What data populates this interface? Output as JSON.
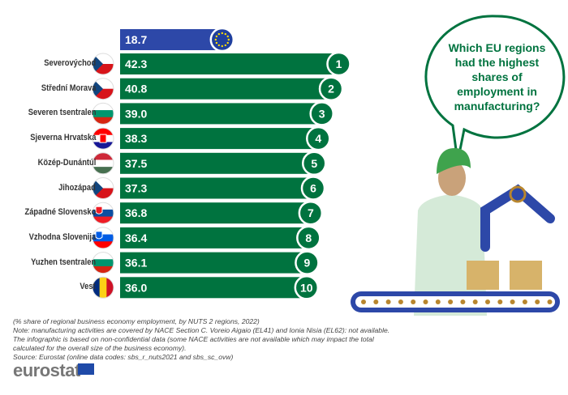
{
  "chart_data": {
    "type": "bar",
    "orientation": "horizontal",
    "eu_value": 18.7,
    "categories": [
      "Severovýchod",
      "Střední Morava",
      "Severen tsentralen",
      "Sjeverna Hrvatska",
      "Közép-Dunántúl",
      "Jihozápad",
      "Západné Slovensko",
      "Vzhodna Slovenija",
      "Yuzhen tsentralen",
      "Vest"
    ],
    "countries": [
      "CZ",
      "CZ",
      "BG",
      "HR",
      "HU",
      "CZ",
      "SK",
      "SI",
      "BG",
      "RO"
    ],
    "values": [
      42.3,
      40.8,
      39.0,
      38.3,
      37.5,
      37.3,
      36.8,
      36.4,
      36.1,
      36.0
    ],
    "value_labels": [
      "42.3",
      "40.8",
      "39.0",
      "38.3",
      "37.5",
      "37.3",
      "36.8",
      "36.4",
      "36.1",
      "36.0"
    ],
    "eu_label": "18.7",
    "ranks": [
      "1",
      "2",
      "3",
      "4",
      "5",
      "6",
      "7",
      "8",
      "9",
      "10"
    ],
    "colors": {
      "bar": "#00733f",
      "eu_bar": "#2d48a8",
      "text_accent": "#00733f"
    }
  },
  "bubble": {
    "question": "Which EU regions had the highest shares of employment in manufacturing?"
  },
  "notes": {
    "subtitle": "(% share of regional business economy employment, by NUTS 2 regions, 2022)",
    "note": "Note: manufacturing activities are covered by NACE Section C. Voreio Aigaio (EL41) and Ionia Nisia (EL62): not available. The infographic is based on non-confidential data (some NACE activities are not available which may impact the total calculated for the overall size of the business economy).",
    "source": "Source: Eurostat (online data codes: sbs_r_nuts2021 and sbs_sc_ovw)"
  },
  "logo": {
    "text": "eurostat"
  }
}
